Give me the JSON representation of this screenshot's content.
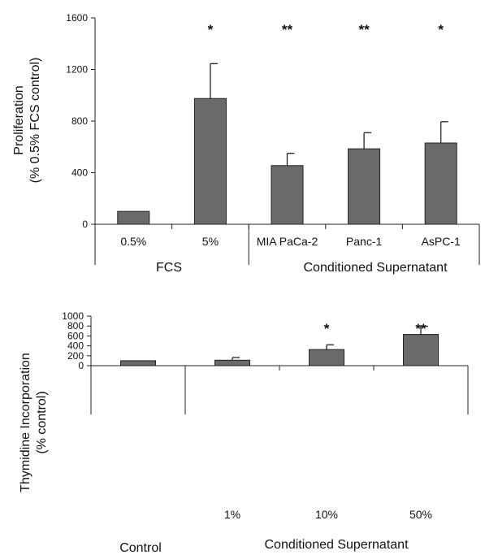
{
  "colors": {
    "bar": "#6a6a6a",
    "axis": "#222222"
  },
  "chart_data": [
    {
      "type": "bar",
      "ylabel_lines": [
        "Proliferation",
        "(% 0.5% FCS control)"
      ],
      "ylim": [
        0,
        1600
      ],
      "yticks": [
        "0",
        "400",
        "800",
        "1200",
        "1600"
      ],
      "categories": [
        "0.5%",
        "5%",
        "MIA PaCa-2",
        "Panc-1",
        "AsPC-1"
      ],
      "values": [
        100,
        975,
        455,
        585,
        630
      ],
      "errors": [
        0,
        270,
        95,
        125,
        165
      ],
      "significance": [
        "",
        "*",
        "**",
        "**",
        "*"
      ],
      "groups": [
        "FCS",
        "Conditioned Supernatant"
      ]
    },
    {
      "type": "bar",
      "ylabel_lines": [
        "Thymidine Incorporation",
        "(% control)"
      ],
      "ylim": [
        0,
        1000
      ],
      "yticks": [
        "0",
        "200",
        "400",
        "600",
        "800",
        "1000"
      ],
      "categories": [
        "",
        "1%",
        "10%",
        "50%"
      ],
      "values": [
        100,
        110,
        325,
        630
      ],
      "errors": [
        0,
        55,
        95,
        165
      ],
      "significance": [
        "",
        "",
        "*",
        "**"
      ],
      "groups": [
        "Control",
        "Conditioned Supernatant"
      ]
    }
  ]
}
